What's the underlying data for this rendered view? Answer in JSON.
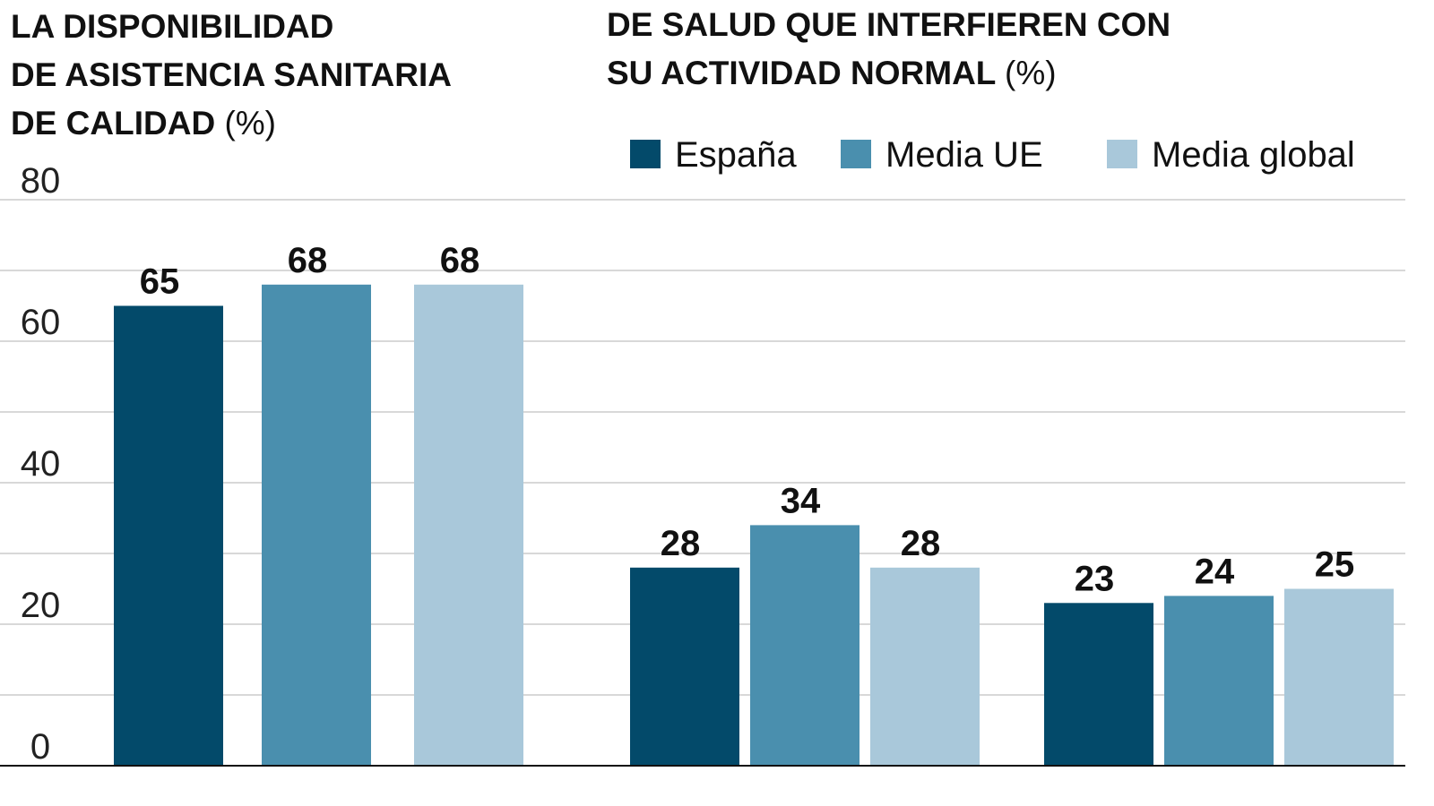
{
  "chart_data": [
    {
      "type": "bar",
      "title_lines": [
        "LA DISPONIBILIDAD",
        "DE ASISTENCIA SANITARIA",
        "DE CALIDAD"
      ],
      "title_unit": "(%)",
      "categories": [
        null,
        null,
        null
      ],
      "values": [
        65,
        68,
        68
      ],
      "colors": [
        "#034a6a",
        "#4a8fae",
        "#a9c8da"
      ],
      "ylim": [
        0,
        80
      ],
      "yticks": [
        0,
        20,
        40,
        60,
        80
      ],
      "minor_gridlines": [
        10,
        30,
        50,
        70
      ],
      "grid": true
    },
    {
      "type": "grouped-bar",
      "title_lines": [
        "DE SALUD QUE INTERFIEREN CON",
        "SU ACTIVIDAD NORMAL"
      ],
      "title_unit": "(%)",
      "categories": [
        null,
        null
      ],
      "series": [
        {
          "name": "España",
          "color": "#034a6a",
          "values": [
            28,
            23
          ]
        },
        {
          "name": "Media UE",
          "color": "#4a8fae",
          "values": [
            34,
            24
          ]
        },
        {
          "name": "Media global",
          "color": "#a9c8da",
          "values": [
            28,
            25
          ]
        }
      ],
      "ylim": [
        0,
        80
      ],
      "legend": "top"
    }
  ]
}
